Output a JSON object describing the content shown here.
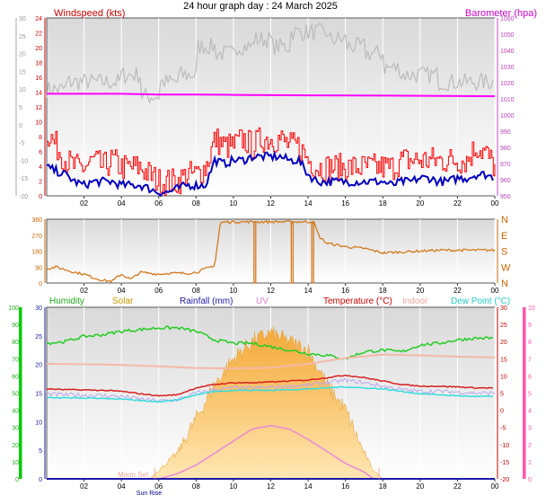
{
  "page_title": "24 hour graph day : 24 March 2025",
  "colors": {
    "windspeed": "#ff0000",
    "windavg": "#0000c0",
    "barometer": "#ff00ff",
    "baro_trend": "#bbbbbb",
    "winddir": "#d47a1e",
    "humidity": "#22cc22",
    "solar": "#f5b73a",
    "rainfall": "#1a1aa8",
    "uv": "#e88ad8",
    "temperature": "#d81f1f",
    "indoor": "#f4b8a8",
    "dewpoint": "#33dddd",
    "temp_low": "#b8a8f0"
  },
  "chart_data": [
    {
      "type": "line",
      "title": "24 hour graph day : 24 March 2025",
      "x_ticks": [
        "02",
        "04",
        "06",
        "08",
        "10",
        "12",
        "14",
        "16",
        "18",
        "20",
        "22",
        "00"
      ],
      "xlim": [
        0,
        24
      ],
      "left_axis": {
        "label": "Windspeed (kts)",
        "ticks": [
          "0",
          "2",
          "4",
          "6",
          "8",
          "10",
          "12",
          "14",
          "16",
          "18",
          "20",
          "22",
          "24"
        ],
        "ylim": [
          0,
          25
        ]
      },
      "right_axis": {
        "label": "Barometer (hpa)",
        "ticks": [
          "950",
          "960",
          "970",
          "980",
          "990",
          "1000",
          "1010",
          "1020",
          "1030",
          "1040",
          "1050",
          "1060"
        ],
        "ylim": [
          945,
          1060
        ]
      },
      "outer_axis": {
        "ticks": [
          "-20",
          "-15",
          "-10",
          "-5",
          "0",
          "5",
          "10",
          "15",
          "20",
          "25",
          "30"
        ]
      },
      "series": [
        {
          "name": "Barometer (hpa)",
          "x": [
            0,
            2,
            4,
            6,
            8,
            10,
            12,
            14,
            16,
            18,
            20,
            22,
            24
          ],
          "y": [
            1011,
            1011,
            1011,
            1010.5,
            1010.5,
            1010.3,
            1010.1,
            1010,
            1009.9,
            1009.8,
            1009.7,
            1009.5,
            1009.4
          ]
        },
        {
          "name": "Windspeed gust",
          "x": [
            0,
            0.5,
            1,
            1.5,
            2,
            2.5,
            3,
            3.5,
            4,
            4.5,
            5,
            5.5,
            6,
            6.5,
            7,
            7.5,
            8,
            8.5,
            9,
            9.5,
            10,
            10.5,
            11,
            11.5,
            12,
            12.5,
            13,
            13.5,
            14,
            14.5,
            15,
            15.5,
            16,
            16.5,
            17,
            17.5,
            18,
            18.5,
            19,
            19.5,
            20,
            20.5,
            21,
            21.5,
            22,
            22.5,
            23,
            23.5,
            24
          ],
          "y": [
            9,
            7,
            5,
            4,
            4,
            5,
            4,
            5,
            4,
            4,
            4,
            3,
            2,
            2,
            2,
            3,
            3,
            4,
            8,
            7,
            7,
            8,
            7,
            8,
            8,
            8,
            7,
            7,
            5,
            4,
            4,
            4,
            4,
            4,
            4,
            4,
            4,
            4,
            5,
            5,
            5,
            5,
            5,
            5,
            5,
            5,
            7,
            6,
            4
          ]
        },
        {
          "name": "Windspeed average",
          "x": [
            0,
            0.5,
            1,
            1.5,
            2,
            2.5,
            3,
            3.5,
            4,
            4.5,
            5,
            5.5,
            6,
            6.5,
            7,
            7.5,
            8,
            8.5,
            9,
            9.5,
            10,
            10.5,
            11,
            11.5,
            12,
            12.5,
            13,
            13.5,
            14,
            14.5,
            15,
            15.5,
            16,
            16.5,
            17,
            17.5,
            18,
            18.5,
            19,
            19.5,
            20,
            20.5,
            21,
            21.5,
            22,
            22.5,
            23,
            23.5,
            24
          ],
          "y": [
            4,
            3.5,
            3,
            2,
            1.5,
            2,
            2,
            2,
            1.5,
            1.5,
            1.5,
            1,
            0.5,
            0.5,
            1,
            1.5,
            1.5,
            1.5,
            5,
            4.5,
            5,
            5,
            5.5,
            5.5,
            5.5,
            5.5,
            5,
            5,
            3,
            2,
            2,
            2,
            2,
            2,
            2,
            2,
            2,
            1.5,
            2,
            2,
            2.5,
            2.5,
            2,
            2,
            2.5,
            2.5,
            3,
            3,
            2.5
          ]
        }
      ]
    },
    {
      "type": "line",
      "x_ticks": [
        "02",
        "04",
        "06",
        "08",
        "10",
        "12",
        "14",
        "16",
        "18",
        "20",
        "22",
        "00"
      ],
      "left_axis": {
        "ticks": [
          "0",
          "90",
          "180",
          "270",
          "360"
        ],
        "ylim": [
          0,
          360
        ]
      },
      "right_axis": {
        "ticks": [
          "N",
          "W",
          "S",
          "E",
          "N"
        ]
      },
      "series": [
        {
          "name": "Wind direction",
          "x": [
            0,
            0.5,
            1,
            1.5,
            2,
            2.5,
            3,
            3.5,
            4,
            4.5,
            5,
            5.5,
            6,
            6.5,
            7,
            7.5,
            8,
            8.5,
            9,
            9.3,
            9.6,
            10,
            11,
            12,
            13,
            14,
            14.3,
            14.6,
            15,
            16,
            17,
            18,
            19,
            20,
            21,
            22,
            23,
            24
          ],
          "y": [
            80,
            90,
            75,
            60,
            50,
            30,
            15,
            10,
            50,
            20,
            60,
            55,
            50,
            55,
            55,
            55,
            60,
            80,
            100,
            340,
            345,
            345,
            345,
            345,
            345,
            345,
            345,
            260,
            225,
            205,
            195,
            170,
            175,
            180,
            185,
            185,
            185,
            185
          ]
        }
      ]
    },
    {
      "type": "line",
      "x_ticks": [
        "02",
        "04",
        "06",
        "08",
        "10",
        "12",
        "14",
        "16",
        "18",
        "20",
        "22",
        "00"
      ],
      "legend": [
        "Humidity",
        "Solar",
        "Rainfall (mm)",
        "UV",
        "Temperature (°C)",
        "Indoor",
        "Dew Point (°C)"
      ],
      "annotations": [
        "Moon Set",
        "Sun Rise"
      ],
      "axes": {
        "humidity": {
          "ticks": [
            "0",
            "10",
            "20",
            "30",
            "40",
            "50",
            "60",
            "70",
            "80",
            "90",
            "100"
          ]
        },
        "rainfall": {
          "ticks": [
            "0",
            "5",
            "10",
            "15",
            "20",
            "25",
            "30"
          ]
        },
        "temperature": {
          "ticks": [
            "-20",
            "-15",
            "-10",
            "-5",
            "0",
            "5",
            "10",
            "15",
            "20",
            "25",
            "30"
          ]
        },
        "uv": {
          "ticks": [
            "0",
            "1",
            "2",
            "3",
            "4",
            "5",
            "6",
            "7",
            "8",
            "9",
            "10"
          ]
        }
      },
      "series": [
        {
          "name": "Humidity",
          "x": [
            0,
            1,
            2,
            3,
            4,
            5,
            6,
            7,
            8,
            9,
            10,
            11,
            12,
            13,
            14,
            15,
            16,
            17,
            18,
            19,
            20,
            21,
            22,
            23,
            24
          ],
          "y": [
            79,
            80,
            83,
            84,
            86,
            87,
            88,
            88,
            86,
            81,
            79,
            79,
            77,
            75,
            73,
            72,
            70,
            74,
            75,
            74,
            78,
            79,
            81,
            82,
            82
          ]
        },
        {
          "name": "Indoor",
          "x": [
            0,
            2,
            4,
            6,
            8,
            10,
            12,
            14,
            16,
            18,
            20,
            22,
            24
          ],
          "y": [
            13.5,
            13.4,
            13.2,
            12.8,
            12.3,
            12.2,
            12.4,
            13.5,
            15.2,
            16.2,
            16.0,
            15.6,
            15.4
          ]
        },
        {
          "name": "Temperature (°C)",
          "x": [
            0,
            1,
            2,
            3,
            4,
            5,
            6,
            7,
            8,
            9,
            10,
            11,
            12,
            13,
            14,
            15,
            16,
            17,
            18,
            19,
            20,
            21,
            22,
            23,
            24
          ],
          "y": [
            6.2,
            6.0,
            5.9,
            5.8,
            5.5,
            4.8,
            4.2,
            4.5,
            6.5,
            7.5,
            8.0,
            8.0,
            8.2,
            8.5,
            8.8,
            9.5,
            10.2,
            9.5,
            8.5,
            7.5,
            7.0,
            7.0,
            6.8,
            6.5,
            6.5
          ]
        },
        {
          "name": "Dew Point (°C)",
          "x": [
            0,
            1,
            2,
            3,
            4,
            5,
            6,
            7,
            8,
            9,
            10,
            11,
            12,
            13,
            14,
            15,
            16,
            17,
            18,
            19,
            20,
            21,
            22,
            23,
            24
          ],
          "y": [
            3.6,
            3.6,
            3.5,
            3.5,
            3.2,
            2.8,
            2.5,
            3.0,
            4.5,
            5.5,
            5.8,
            5.8,
            5.8,
            6.0,
            6.2,
            6.5,
            6.8,
            6.5,
            6.2,
            5.5,
            4.8,
            4.5,
            4.2,
            4.0,
            4.0
          ]
        },
        {
          "name": "Solar",
          "x": [
            5.5,
            6,
            7,
            8,
            9,
            10,
            11,
            12,
            13,
            14,
            15,
            16,
            17,
            17.5,
            18
          ],
          "y": [
            0,
            5,
            15,
            35,
            55,
            70,
            80,
            85,
            80,
            75,
            55,
            40,
            15,
            5,
            0
          ]
        },
        {
          "name": "UV",
          "x": [
            6,
            7,
            8,
            9,
            10,
            11,
            12,
            13,
            14,
            15,
            16,
            17,
            17.5
          ],
          "y": [
            0,
            0.3,
            0.8,
            1.5,
            2.2,
            2.9,
            3.1,
            2.9,
            2.3,
            1.6,
            0.9,
            0.4,
            0
          ]
        },
        {
          "name": "Rainfall (mm)",
          "x": [
            0,
            24
          ],
          "y": [
            0,
            0
          ]
        }
      ]
    }
  ]
}
